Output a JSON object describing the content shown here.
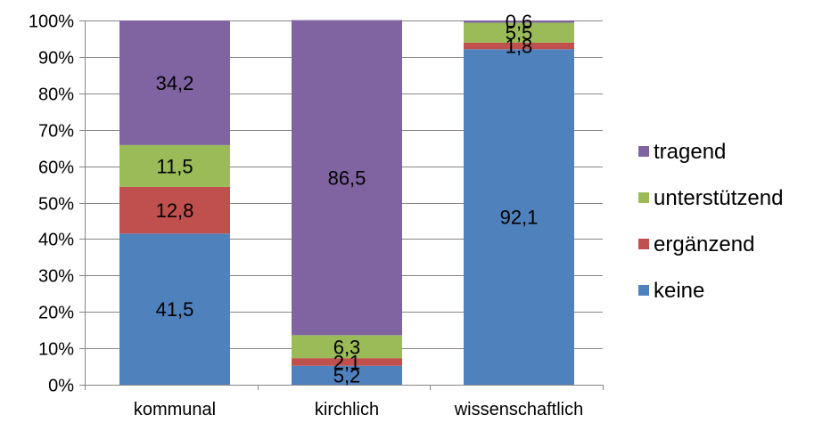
{
  "chart_data": {
    "type": "bar",
    "stacked": true,
    "percent_axis": true,
    "categories": [
      "kommunal",
      "kirchlich",
      "wissenschaftlich"
    ],
    "series": [
      {
        "name": "keine",
        "color": "#4F81BD",
        "values": [
          41.5,
          5.2,
          92.1
        ],
        "labels": [
          "41,5",
          "5,2",
          "92,1"
        ]
      },
      {
        "name": "ergänzend",
        "color": "#C0504D",
        "values": [
          12.8,
          2.1,
          1.8
        ],
        "labels": [
          "12,8",
          "2,1",
          "1,8"
        ]
      },
      {
        "name": "unterstützend",
        "color": "#9BBB59",
        "values": [
          11.5,
          6.3,
          5.5
        ],
        "labels": [
          "11,5",
          "6,3",
          "5,5"
        ]
      },
      {
        "name": "tragend",
        "color": "#8064A2",
        "values": [
          34.2,
          86.5,
          0.6
        ],
        "labels": [
          "34,2",
          "86,5",
          "0,6"
        ]
      }
    ],
    "yticks": [
      "0%",
      "10%",
      "20%",
      "30%",
      "40%",
      "50%",
      "60%",
      "70%",
      "80%",
      "90%",
      "100%"
    ],
    "ylim": [
      0,
      100
    ],
    "grid": true,
    "legend_position": "right",
    "legend_order": [
      "tragend",
      "unterstützend",
      "ergänzend",
      "keine"
    ]
  }
}
